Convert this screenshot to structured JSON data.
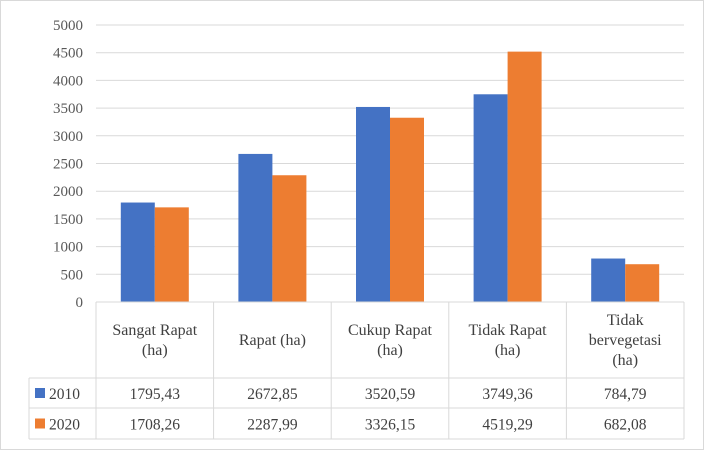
{
  "colors": {
    "series_2010": "#4472C4",
    "series_2020": "#ED7D31",
    "grid": "#d9d9d9",
    "text": "#404040",
    "axis_text": "#595959"
  },
  "chart_data": {
    "type": "bar",
    "title": "",
    "xlabel": "",
    "ylabel": "",
    "ylim": [
      0,
      5000
    ],
    "yticks": [
      0,
      500,
      1000,
      1500,
      2000,
      2500,
      3000,
      3500,
      4000,
      4500,
      5000
    ],
    "grid": true,
    "legend": "data-table",
    "categories": [
      [
        "Sangat Rapat",
        "(ha)"
      ],
      [
        "Rapat (ha)"
      ],
      [
        "Cukup Rapat",
        "(ha)"
      ],
      [
        "Tidak Rapat",
        "(ha)"
      ],
      [
        "Tidak",
        "bervegetasi",
        "(ha)"
      ]
    ],
    "series": [
      {
        "name": "2010",
        "values": [
          1795.43,
          2672.85,
          3520.59,
          3749.36,
          784.79
        ],
        "labels": [
          "1795,43",
          "2672,85",
          "3520,59",
          "3749,36",
          "784,79"
        ]
      },
      {
        "name": "2020",
        "values": [
          1708.26,
          2287.99,
          3326.15,
          4519.29,
          682.08
        ],
        "labels": [
          "1708,26",
          "2287,99",
          "3326,15",
          "4519,29",
          "682,08"
        ]
      }
    ]
  }
}
